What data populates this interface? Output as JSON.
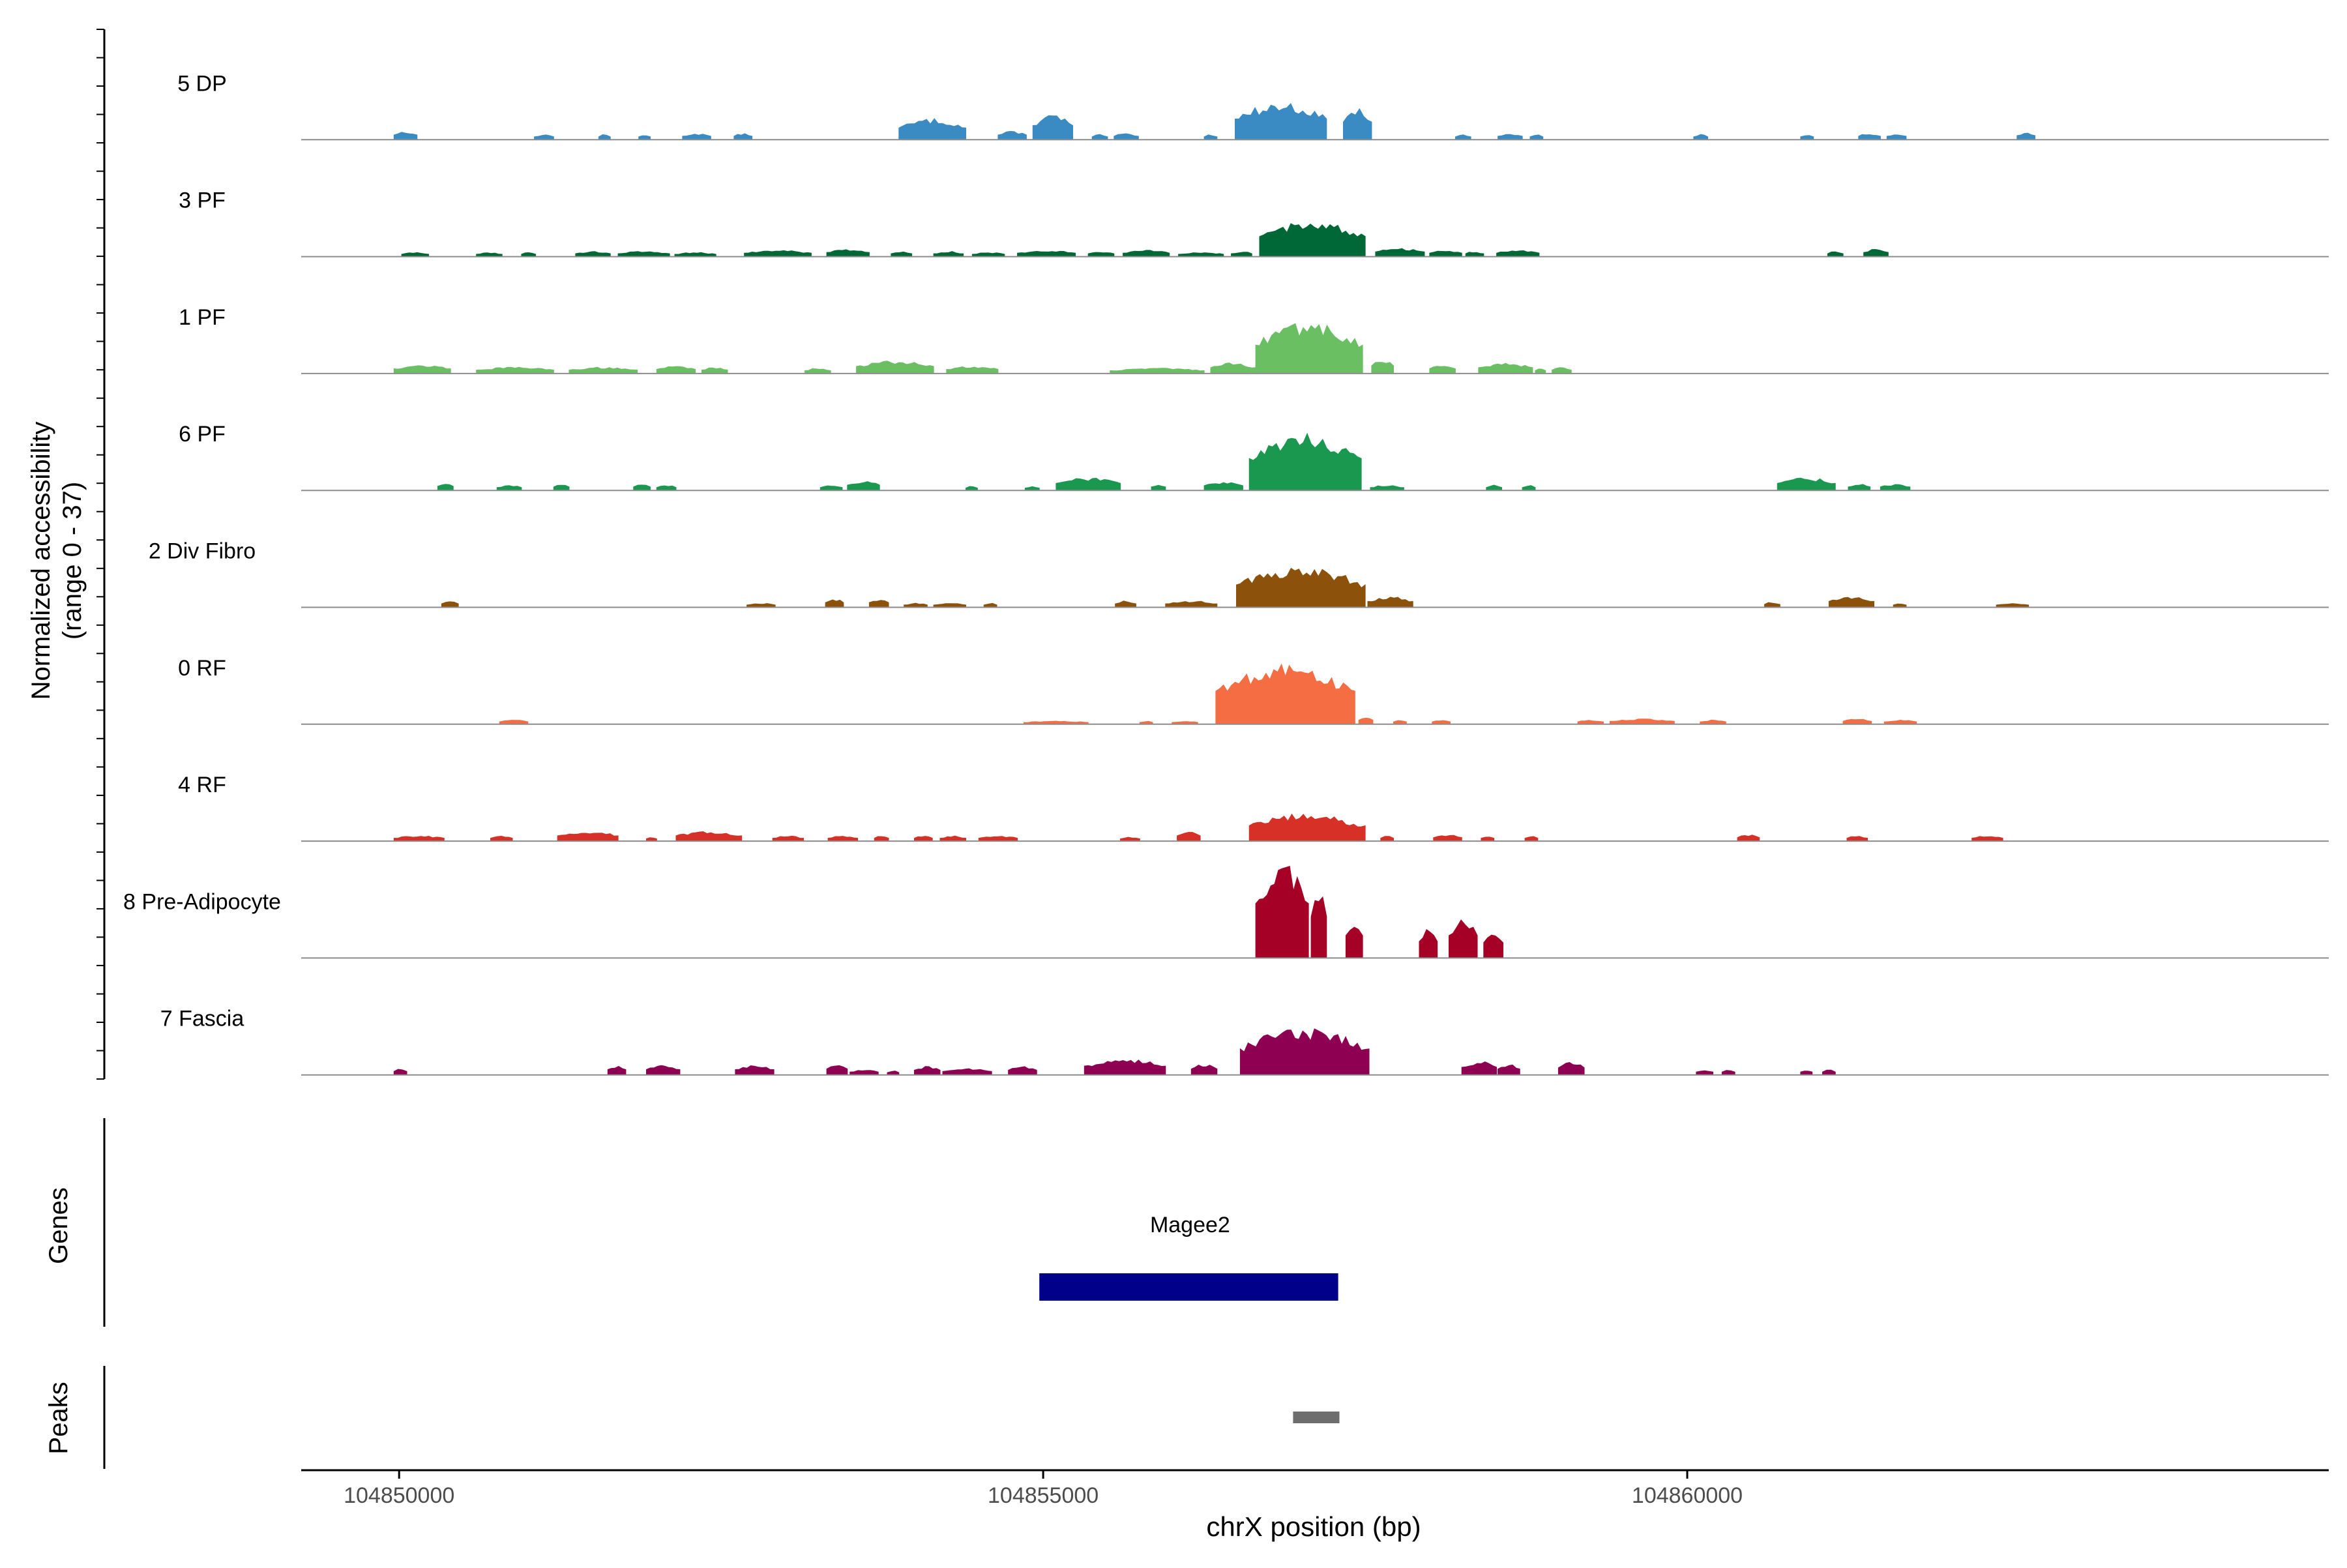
{
  "chart_data": {
    "type": "area",
    "title": "",
    "y_axis_label_line1": "Normalized accessibility",
    "y_axis_label_line2": "(range 0 - 37)",
    "y_range": [
      0,
      37
    ],
    "xlabel": "chrX position (bp)",
    "x_range": [
      104849240,
      104864980
    ],
    "x_ticks": [
      104850000,
      104855000,
      104860000
    ],
    "x_tick_labels": [
      "104850000",
      "104855000",
      "104860000"
    ],
    "tracks": [
      {
        "name": "5 DP",
        "color": "#3A8BC4",
        "segments": [
          {
            "start": 104849960,
            "end": 104850140,
            "level": 0.08
          },
          {
            "start": 104851050,
            "end": 104851200,
            "level": 0.05
          },
          {
            "start": 104851550,
            "end": 104851640,
            "level": 0.05
          },
          {
            "start": 104851860,
            "end": 104851950,
            "level": 0.05
          },
          {
            "start": 104852200,
            "end": 104852420,
            "level": 0.06
          },
          {
            "start": 104852600,
            "end": 104852740,
            "level": 0.06
          },
          {
            "start": 104853880,
            "end": 104854400,
            "level": 0.2
          },
          {
            "start": 104854650,
            "end": 104854870,
            "level": 0.08
          },
          {
            "start": 104854920,
            "end": 104855230,
            "level": 0.24
          },
          {
            "start": 104855380,
            "end": 104855500,
            "level": 0.05
          },
          {
            "start": 104855550,
            "end": 104855740,
            "level": 0.06
          },
          {
            "start": 104856250,
            "end": 104856350,
            "level": 0.05
          },
          {
            "start": 104856490,
            "end": 104857200,
            "level": 0.35
          },
          {
            "start": 104857330,
            "end": 104857550,
            "level": 0.3
          },
          {
            "start": 104858200,
            "end": 104858320,
            "level": 0.05
          },
          {
            "start": 104858530,
            "end": 104858720,
            "level": 0.06
          },
          {
            "start": 104858780,
            "end": 104858880,
            "level": 0.05
          },
          {
            "start": 104860050,
            "end": 104860160,
            "level": 0.05
          },
          {
            "start": 104860880,
            "end": 104860980,
            "level": 0.05
          },
          {
            "start": 104861330,
            "end": 104861500,
            "level": 0.06
          },
          {
            "start": 104861550,
            "end": 104861700,
            "level": 0.06
          },
          {
            "start": 104862560,
            "end": 104862700,
            "level": 0.07
          }
        ]
      },
      {
        "name": "3 PF",
        "color": "#006837",
        "segments": [
          {
            "start": 104850020,
            "end": 104850230,
            "level": 0.04
          },
          {
            "start": 104850600,
            "end": 104850800,
            "level": 0.04
          },
          {
            "start": 104850950,
            "end": 104851060,
            "level": 0.04
          },
          {
            "start": 104851370,
            "end": 104851640,
            "level": 0.05
          },
          {
            "start": 104851700,
            "end": 104852100,
            "level": 0.05
          },
          {
            "start": 104852140,
            "end": 104852460,
            "level": 0.04
          },
          {
            "start": 104852680,
            "end": 104853200,
            "level": 0.06
          },
          {
            "start": 104853320,
            "end": 104853650,
            "level": 0.07
          },
          {
            "start": 104853820,
            "end": 104853980,
            "level": 0.05
          },
          {
            "start": 104854150,
            "end": 104854380,
            "level": 0.05
          },
          {
            "start": 104854450,
            "end": 104854700,
            "level": 0.04
          },
          {
            "start": 104854800,
            "end": 104855250,
            "level": 0.06
          },
          {
            "start": 104855350,
            "end": 104855550,
            "level": 0.05
          },
          {
            "start": 104855620,
            "end": 104855980,
            "level": 0.06
          },
          {
            "start": 104856050,
            "end": 104856400,
            "level": 0.04
          },
          {
            "start": 104856460,
            "end": 104856620,
            "level": 0.05
          },
          {
            "start": 104856680,
            "end": 104857500,
            "level": 0.34
          },
          {
            "start": 104857580,
            "end": 104857960,
            "level": 0.08
          },
          {
            "start": 104858000,
            "end": 104858250,
            "level": 0.06
          },
          {
            "start": 104858280,
            "end": 104858420,
            "level": 0.05
          },
          {
            "start": 104858520,
            "end": 104858850,
            "level": 0.06
          },
          {
            "start": 104861090,
            "end": 104861210,
            "level": 0.05
          },
          {
            "start": 104861370,
            "end": 104861560,
            "level": 0.07
          }
        ]
      },
      {
        "name": "1 PF",
        "color": "#6BBF63",
        "segments": [
          {
            "start": 104849960,
            "end": 104850400,
            "level": 0.08
          },
          {
            "start": 104850600,
            "end": 104851200,
            "level": 0.06
          },
          {
            "start": 104851320,
            "end": 104851850,
            "level": 0.06
          },
          {
            "start": 104852000,
            "end": 104852300,
            "level": 0.07
          },
          {
            "start": 104852350,
            "end": 104852550,
            "level": 0.06
          },
          {
            "start": 104853150,
            "end": 104853350,
            "level": 0.05
          },
          {
            "start": 104853550,
            "end": 104854150,
            "level": 0.12
          },
          {
            "start": 104854250,
            "end": 104854650,
            "level": 0.07
          },
          {
            "start": 104855520,
            "end": 104856250,
            "level": 0.05
          },
          {
            "start": 104856300,
            "end": 104856650,
            "level": 0.1
          },
          {
            "start": 104856650,
            "end": 104857480,
            "level": 0.48
          },
          {
            "start": 104857550,
            "end": 104857720,
            "level": 0.13
          },
          {
            "start": 104858000,
            "end": 104858200,
            "level": 0.08
          },
          {
            "start": 104858380,
            "end": 104858800,
            "level": 0.1
          },
          {
            "start": 104858820,
            "end": 104858900,
            "level": 0.05
          },
          {
            "start": 104858950,
            "end": 104859100,
            "level": 0.06
          }
        ]
      },
      {
        "name": "6 PF",
        "color": "#1A9850",
        "segments": [
          {
            "start": 104850300,
            "end": 104850420,
            "level": 0.07
          },
          {
            "start": 104850760,
            "end": 104850950,
            "level": 0.05
          },
          {
            "start": 104851200,
            "end": 104851320,
            "level": 0.06
          },
          {
            "start": 104851820,
            "end": 104851950,
            "level": 0.06
          },
          {
            "start": 104852000,
            "end": 104852150,
            "level": 0.05
          },
          {
            "start": 104853270,
            "end": 104853440,
            "level": 0.05
          },
          {
            "start": 104853480,
            "end": 104853730,
            "level": 0.09
          },
          {
            "start": 104854400,
            "end": 104854490,
            "level": 0.04
          },
          {
            "start": 104854860,
            "end": 104854970,
            "level": 0.04
          },
          {
            "start": 104855100,
            "end": 104855600,
            "level": 0.12
          },
          {
            "start": 104855840,
            "end": 104855950,
            "level": 0.06
          },
          {
            "start": 104856250,
            "end": 104856550,
            "level": 0.08
          },
          {
            "start": 104856600,
            "end": 104857470,
            "level": 0.54
          },
          {
            "start": 104857540,
            "end": 104857800,
            "level": 0.05
          },
          {
            "start": 104858440,
            "end": 104858560,
            "level": 0.05
          },
          {
            "start": 104858720,
            "end": 104858820,
            "level": 0.05
          },
          {
            "start": 104860700,
            "end": 104861150,
            "level": 0.12
          },
          {
            "start": 104861250,
            "end": 104861420,
            "level": 0.06
          },
          {
            "start": 104861500,
            "end": 104861730,
            "level": 0.06
          }
        ]
      },
      {
        "name": "2 Div Fibro",
        "color": "#8C510A",
        "segments": [
          {
            "start": 104850330,
            "end": 104850460,
            "level": 0.06
          },
          {
            "start": 104852700,
            "end": 104852920,
            "level": 0.04
          },
          {
            "start": 104853310,
            "end": 104853450,
            "level": 0.08
          },
          {
            "start": 104853650,
            "end": 104853800,
            "level": 0.08
          },
          {
            "start": 104853920,
            "end": 104854100,
            "level": 0.04
          },
          {
            "start": 104854150,
            "end": 104854400,
            "level": 0.04
          },
          {
            "start": 104854540,
            "end": 104854640,
            "level": 0.04
          },
          {
            "start": 104855560,
            "end": 104855720,
            "level": 0.06
          },
          {
            "start": 104855950,
            "end": 104856350,
            "level": 0.06
          },
          {
            "start": 104856500,
            "end": 104857500,
            "level": 0.38
          },
          {
            "start": 104857520,
            "end": 104857870,
            "level": 0.1
          },
          {
            "start": 104860600,
            "end": 104860720,
            "level": 0.05
          },
          {
            "start": 104861100,
            "end": 104861450,
            "level": 0.1
          },
          {
            "start": 104861600,
            "end": 104861700,
            "level": 0.04
          },
          {
            "start": 104862400,
            "end": 104862650,
            "level": 0.04
          }
        ]
      },
      {
        "name": "0 RF",
        "color": "#F46D43",
        "segments": [
          {
            "start": 104850780,
            "end": 104851000,
            "level": 0.04
          },
          {
            "start": 104854850,
            "end": 104855350,
            "level": 0.03
          },
          {
            "start": 104855750,
            "end": 104855850,
            "level": 0.03
          },
          {
            "start": 104856000,
            "end": 104856200,
            "level": 0.03
          },
          {
            "start": 104856340,
            "end": 104857420,
            "level": 0.56
          },
          {
            "start": 104857450,
            "end": 104857560,
            "level": 0.07
          },
          {
            "start": 104857720,
            "end": 104857820,
            "level": 0.04
          },
          {
            "start": 104858020,
            "end": 104858160,
            "level": 0.04
          },
          {
            "start": 104859150,
            "end": 104859350,
            "level": 0.04
          },
          {
            "start": 104859400,
            "end": 104859900,
            "level": 0.05
          },
          {
            "start": 104860100,
            "end": 104860300,
            "level": 0.04
          },
          {
            "start": 104861210,
            "end": 104861430,
            "level": 0.05
          },
          {
            "start": 104861530,
            "end": 104861780,
            "level": 0.04
          }
        ]
      },
      {
        "name": "4 RF",
        "color": "#D73027",
        "segments": [
          {
            "start": 104849960,
            "end": 104850350,
            "level": 0.05
          },
          {
            "start": 104850710,
            "end": 104850880,
            "level": 0.05
          },
          {
            "start": 104851230,
            "end": 104851700,
            "level": 0.09
          },
          {
            "start": 104851920,
            "end": 104852000,
            "level": 0.04
          },
          {
            "start": 104852150,
            "end": 104852660,
            "level": 0.09
          },
          {
            "start": 104852900,
            "end": 104853140,
            "level": 0.05
          },
          {
            "start": 104853330,
            "end": 104853560,
            "level": 0.05
          },
          {
            "start": 104853690,
            "end": 104853800,
            "level": 0.05
          },
          {
            "start": 104854000,
            "end": 104854140,
            "level": 0.05
          },
          {
            "start": 104854200,
            "end": 104854400,
            "level": 0.05
          },
          {
            "start": 104854500,
            "end": 104854800,
            "level": 0.05
          },
          {
            "start": 104855600,
            "end": 104855750,
            "level": 0.04
          },
          {
            "start": 104856040,
            "end": 104856220,
            "level": 0.09
          },
          {
            "start": 104856600,
            "end": 104857500,
            "level": 0.26
          },
          {
            "start": 104857620,
            "end": 104857720,
            "level": 0.05
          },
          {
            "start": 104858030,
            "end": 104858250,
            "level": 0.06
          },
          {
            "start": 104858400,
            "end": 104858500,
            "level": 0.05
          },
          {
            "start": 104858740,
            "end": 104858840,
            "level": 0.05
          },
          {
            "start": 104860390,
            "end": 104860560,
            "level": 0.06
          },
          {
            "start": 104861240,
            "end": 104861400,
            "level": 0.05
          },
          {
            "start": 104862210,
            "end": 104862450,
            "level": 0.05
          }
        ]
      },
      {
        "name": "8 Pre-Adipocyte",
        "color": "#A50026",
        "segments": [
          {
            "start": 104856650,
            "end": 104857060,
            "level": 0.92
          },
          {
            "start": 104857080,
            "end": 104857200,
            "level": 0.7
          },
          {
            "start": 104857350,
            "end": 104857480,
            "level": 0.38
          },
          {
            "start": 104857920,
            "end": 104858060,
            "level": 0.28
          },
          {
            "start": 104858150,
            "end": 104858370,
            "level": 0.38
          },
          {
            "start": 104858420,
            "end": 104858570,
            "level": 0.26
          }
        ]
      },
      {
        "name": "7 Fascia",
        "color": "#8E0152",
        "segments": [
          {
            "start": 104849960,
            "end": 104850060,
            "level": 0.06
          },
          {
            "start": 104851620,
            "end": 104851760,
            "level": 0.09
          },
          {
            "start": 104851920,
            "end": 104852180,
            "level": 0.09
          },
          {
            "start": 104852610,
            "end": 104852910,
            "level": 0.09
          },
          {
            "start": 104853320,
            "end": 104853480,
            "level": 0.1
          },
          {
            "start": 104853500,
            "end": 104853720,
            "level": 0.05
          },
          {
            "start": 104853790,
            "end": 104853880,
            "level": 0.04
          },
          {
            "start": 104854000,
            "end": 104854200,
            "level": 0.08
          },
          {
            "start": 104854220,
            "end": 104854600,
            "level": 0.06
          },
          {
            "start": 104854730,
            "end": 104854950,
            "level": 0.08
          },
          {
            "start": 104855320,
            "end": 104855950,
            "level": 0.15
          },
          {
            "start": 104856150,
            "end": 104856350,
            "level": 0.1
          },
          {
            "start": 104856530,
            "end": 104857530,
            "level": 0.44
          },
          {
            "start": 104858250,
            "end": 104858520,
            "level": 0.13
          },
          {
            "start": 104858530,
            "end": 104858700,
            "level": 0.1
          },
          {
            "start": 104859000,
            "end": 104859200,
            "level": 0.12
          },
          {
            "start": 104860070,
            "end": 104860200,
            "level": 0.05
          },
          {
            "start": 104860270,
            "end": 104860370,
            "level": 0.05
          },
          {
            "start": 104860880,
            "end": 104860970,
            "level": 0.05
          },
          {
            "start": 104861050,
            "end": 104861150,
            "level": 0.05
          }
        ]
      }
    ],
    "genes_axis_label": "Genes",
    "genes": [
      {
        "name": "Magee2",
        "start": 104854970,
        "end": 104857290,
        "color": "#00008B"
      }
    ],
    "peaks_axis_label": "Peaks",
    "peaks": [
      {
        "start": 104856940,
        "end": 104857300,
        "color": "#6E6E6E"
      }
    ]
  }
}
